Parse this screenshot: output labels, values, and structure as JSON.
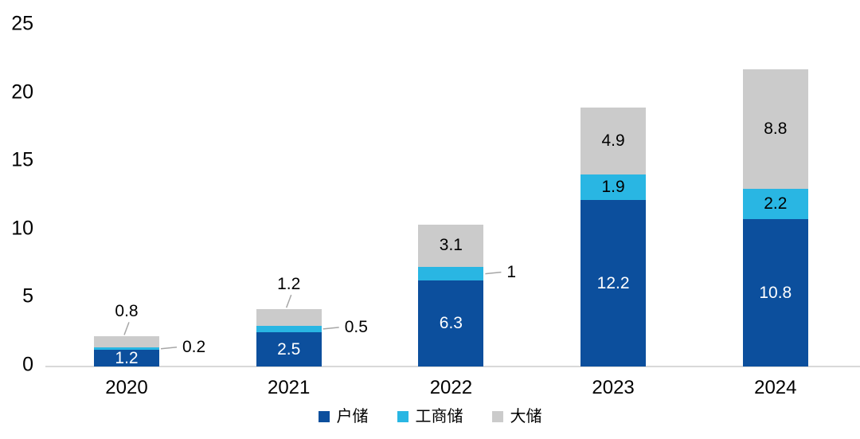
{
  "chart_data": {
    "type": "bar",
    "stacked": true,
    "title": "",
    "categories": [
      "2020",
      "2021",
      "2022",
      "2023",
      "2024"
    ],
    "series": [
      {
        "name": "户储",
        "color": "#0c4f9d",
        "label_color": "#ffffff",
        "values": [
          1.2,
          2.5,
          6.3,
          12.2,
          10.8
        ],
        "label_placements": [
          "inside",
          "inside",
          "inside",
          "inside",
          "inside"
        ]
      },
      {
        "name": "工商储",
        "color": "#29b6e3",
        "label_color": "#000000",
        "values": [
          0.2,
          0.5,
          1,
          1.9,
          2.2
        ],
        "label_placements": [
          "callout-right",
          "callout-right",
          "callout-right",
          "inside",
          "inside"
        ]
      },
      {
        "name": "大储",
        "color": "#cbcbcb",
        "label_color": "#000000",
        "values": [
          0.8,
          1.2,
          3.1,
          4.9,
          8.8
        ],
        "label_placements": [
          "callout-above",
          "callout-above",
          "inside",
          "inside",
          "inside"
        ]
      }
    ],
    "ylim": [
      0,
      25
    ],
    "yticks": [
      0,
      5,
      10,
      15,
      20,
      25
    ],
    "xlabel": "",
    "ylabel": "",
    "grid": false,
    "legend_position": "bottom",
    "legend": [
      "户储",
      "工商储",
      "大储"
    ]
  },
  "colors": {
    "background": "#ffffff",
    "axis_line": "#d9d9d9",
    "leader_line": "#a6a6a6",
    "tick_text": "#000000"
  }
}
